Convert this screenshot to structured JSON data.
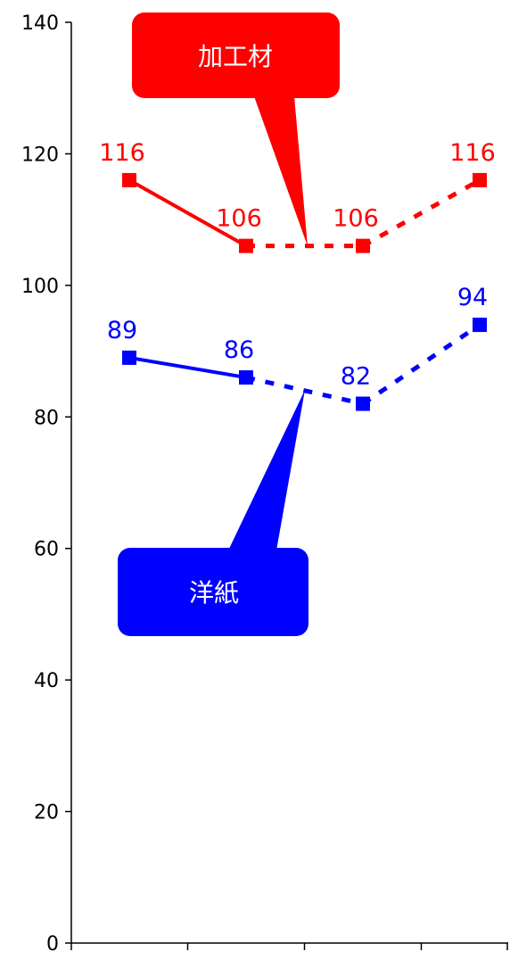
{
  "chart_data": {
    "type": "line",
    "categories": [
      "",
      "",
      "",
      ""
    ],
    "ylim": [
      0,
      140
    ],
    "yticks": [
      0,
      20,
      40,
      60,
      80,
      100,
      120,
      140
    ],
    "grid": false,
    "series": [
      {
        "name": "加工材",
        "color": "#ff0000",
        "values": [
          116,
          106,
          106,
          116
        ],
        "labels": [
          "116",
          "106",
          "106",
          "116"
        ],
        "solid_segments": [
          [
            0,
            1
          ]
        ],
        "dashed_segments": [
          [
            1,
            2
          ],
          [
            2,
            3
          ]
        ]
      },
      {
        "name": "洋紙",
        "color": "#0000ff",
        "values": [
          89,
          86,
          82,
          94
        ],
        "labels": [
          "89",
          "86",
          "82",
          "94"
        ],
        "solid_segments": [
          [
            0,
            1
          ]
        ],
        "dashed_segments": [
          [
            1,
            2
          ],
          [
            2,
            3
          ]
        ]
      }
    ]
  }
}
